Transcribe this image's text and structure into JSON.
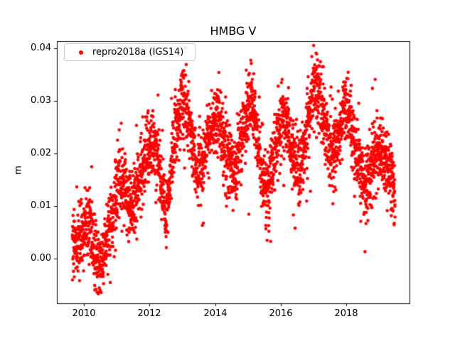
{
  "figure": {
    "title": "HMBG V",
    "background_color": "#ffffff"
  },
  "legend": {
    "label": "repro2018a (IGS14)",
    "marker_color": "#ff0000",
    "position": "upper left"
  },
  "chart_data": {
    "type": "scatter",
    "title": "HMBG V",
    "xlabel": "",
    "ylabel": "m",
    "grid": false,
    "legend_position": "upper left",
    "series": [
      {
        "name": "repro2018a (IGS14)",
        "color": "#ff0000",
        "marker": "dot",
        "marker_radius_px": 2.3
      }
    ],
    "xlim": [
      2009.18,
      2019.92
    ],
    "ylim": [
      -0.0085,
      0.0414
    ],
    "x_ticks": [
      {
        "value": 2010,
        "label": "2010"
      },
      {
        "value": 2012,
        "label": "2012"
      },
      {
        "value": 2014,
        "label": "2014"
      },
      {
        "value": 2016,
        "label": "2016"
      },
      {
        "value": 2018,
        "label": "2018"
      }
    ],
    "y_ticks": [
      {
        "value": 0.0,
        "label": "0.00"
      },
      {
        "value": 0.01,
        "label": "0.01"
      },
      {
        "value": 0.02,
        "label": "0.02"
      },
      {
        "value": 0.03,
        "label": "0.03"
      },
      {
        "value": 0.04,
        "label": "0.04"
      }
    ],
    "x_start": 2009.65,
    "x_end": 2019.48,
    "n_points": 3200,
    "noise_sigma": 0.0033,
    "outlier_fraction": 0.08,
    "outlier_sigma": 0.006,
    "seed": 42,
    "trend_mean_m": [
      [
        2009.65,
        0.002
      ],
      [
        2009.75,
        0.003
      ],
      [
        2009.9,
        0.004
      ],
      [
        2010.05,
        0.006
      ],
      [
        2010.15,
        0.007
      ],
      [
        2010.3,
        0.003
      ],
      [
        2010.45,
        -0.001
      ],
      [
        2010.55,
        0.0
      ],
      [
        2010.7,
        0.004
      ],
      [
        2010.85,
        0.008
      ],
      [
        2011.0,
        0.012
      ],
      [
        2011.1,
        0.015
      ],
      [
        2011.25,
        0.013
      ],
      [
        2011.4,
        0.01
      ],
      [
        2011.55,
        0.011
      ],
      [
        2011.7,
        0.015
      ],
      [
        2011.85,
        0.019
      ],
      [
        2012.0,
        0.021
      ],
      [
        2012.1,
        0.022
      ],
      [
        2012.25,
        0.019
      ],
      [
        2012.4,
        0.013
      ],
      [
        2012.5,
        0.008
      ],
      [
        2012.6,
        0.014
      ],
      [
        2012.75,
        0.022
      ],
      [
        2012.9,
        0.028
      ],
      [
        2013.0,
        0.03
      ],
      [
        2013.1,
        0.029
      ],
      [
        2013.25,
        0.024
      ],
      [
        2013.4,
        0.019
      ],
      [
        2013.5,
        0.017
      ],
      [
        2013.65,
        0.019
      ],
      [
        2013.8,
        0.023
      ],
      [
        2013.95,
        0.026
      ],
      [
        2014.05,
        0.027
      ],
      [
        2014.2,
        0.024
      ],
      [
        2014.35,
        0.02
      ],
      [
        2014.5,
        0.017
      ],
      [
        2014.6,
        0.016
      ],
      [
        2014.75,
        0.021
      ],
      [
        2014.9,
        0.026
      ],
      [
        2015.0,
        0.029
      ],
      [
        2015.1,
        0.031
      ],
      [
        2015.2,
        0.027
      ],
      [
        2015.35,
        0.02
      ],
      [
        2015.5,
        0.014
      ],
      [
        2015.6,
        0.013
      ],
      [
        2015.75,
        0.018
      ],
      [
        2015.9,
        0.024
      ],
      [
        2016.0,
        0.026
      ],
      [
        2016.1,
        0.027
      ],
      [
        2016.25,
        0.023
      ],
      [
        2016.4,
        0.019
      ],
      [
        2016.55,
        0.017
      ],
      [
        2016.7,
        0.021
      ],
      [
        2016.85,
        0.027
      ],
      [
        2016.95,
        0.031
      ],
      [
        2017.05,
        0.033
      ],
      [
        2017.15,
        0.032
      ],
      [
        2017.3,
        0.027
      ],
      [
        2017.45,
        0.022
      ],
      [
        2017.55,
        0.02
      ],
      [
        2017.7,
        0.022
      ],
      [
        2017.85,
        0.026
      ],
      [
        2017.95,
        0.028
      ],
      [
        2018.05,
        0.028
      ],
      [
        2018.2,
        0.023
      ],
      [
        2018.35,
        0.018
      ],
      [
        2018.5,
        0.015
      ],
      [
        2018.6,
        0.014
      ],
      [
        2018.75,
        0.017
      ],
      [
        2018.9,
        0.02
      ],
      [
        2019.0,
        0.021
      ],
      [
        2019.1,
        0.02
      ],
      [
        2019.25,
        0.018
      ],
      [
        2019.35,
        0.016
      ],
      [
        2019.45,
        0.013
      ]
    ]
  }
}
